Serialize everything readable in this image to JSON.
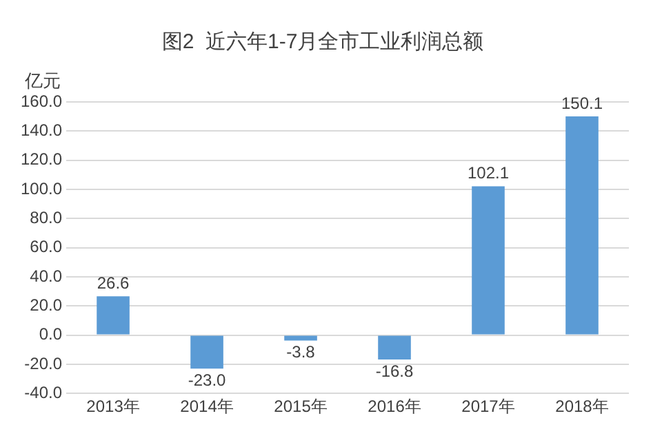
{
  "chart_data": {
    "type": "bar",
    "title": "图2  近六年1-7月全市工业利润总额",
    "ylabel": "亿元",
    "categories": [
      "2013年",
      "2014年",
      "2015年",
      "2016年",
      "2017年",
      "2018年"
    ],
    "series": [
      {
        "color": "#5b9bd5",
        "values": [
          26.6,
          -23.0,
          -3.8,
          -16.8,
          102.1,
          150.1
        ],
        "value_labels": [
          "26.6",
          "-23.0",
          "-3.8",
          "-16.8",
          "102.1",
          "150.1"
        ]
      }
    ],
    "ylim": [
      -40,
      160
    ],
    "yticks": [
      {
        "value": -40,
        "label": "-40.0"
      },
      {
        "value": -20,
        "label": "-20.0"
      },
      {
        "value": 0,
        "label": "0.0"
      },
      {
        "value": 20,
        "label": "20.0"
      },
      {
        "value": 40,
        "label": "40.0"
      },
      {
        "value": 60,
        "label": "60.0"
      },
      {
        "value": 80,
        "label": "80.0"
      },
      {
        "value": 100,
        "label": "100.0"
      },
      {
        "value": 120,
        "label": "120.0"
      },
      {
        "value": 140,
        "label": "140.0"
      },
      {
        "value": 160,
        "label": "160.0"
      }
    ],
    "grid": "y",
    "legend": false
  }
}
